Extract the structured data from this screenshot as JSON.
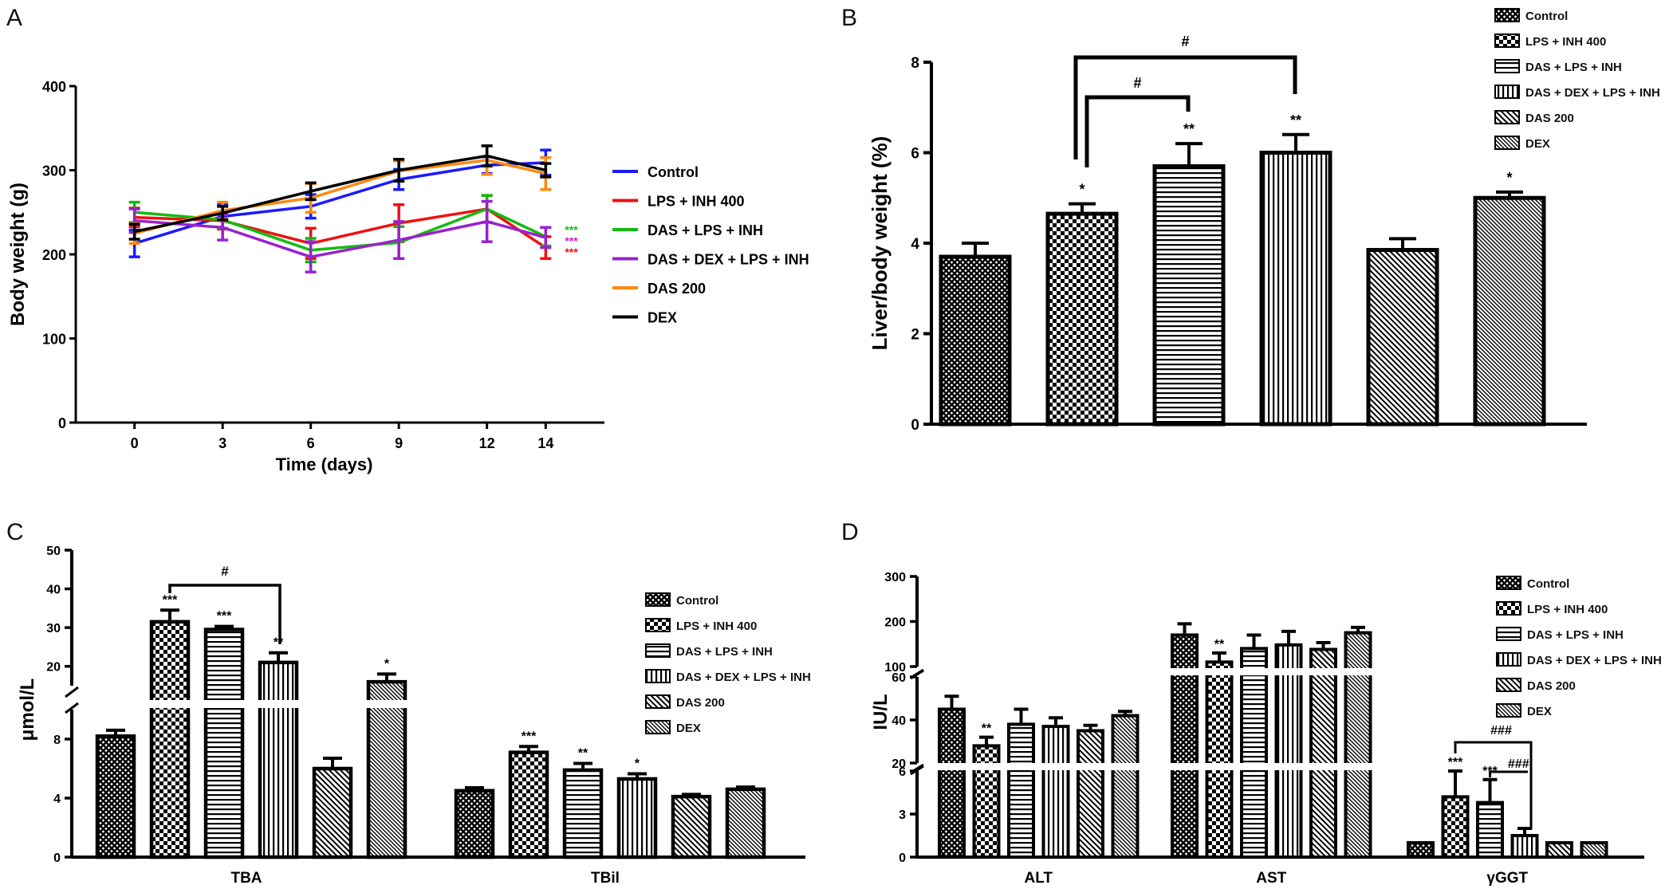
{
  "chart_data": [
    {
      "panel": "A",
      "type": "line",
      "title": "",
      "xlabel": "Time (days)",
      "ylabel": "Body weight (g)",
      "x": [
        0,
        3,
        6,
        9,
        12,
        14
      ],
      "xlim": [
        -2,
        16
      ],
      "ylim": [
        0,
        400
      ],
      "yticks": [
        0,
        100,
        200,
        300,
        400
      ],
      "legend_position": "right",
      "series": [
        {
          "name": "Control",
          "color": "#1a1aff",
          "values": [
            213,
            245,
            257,
            289,
            306,
            309
          ],
          "errors": [
            16,
            14,
            14,
            12,
            10,
            15
          ]
        },
        {
          "name": "LPS + INH 400",
          "color": "#ee1111",
          "values": [
            244,
            240,
            213,
            237,
            254,
            208
          ],
          "errors": [
            11,
            10,
            18,
            22,
            16,
            13
          ]
        },
        {
          "name": "DAS + LPS + INH",
          "color": "#11bb11",
          "values": [
            250,
            241,
            205,
            214,
            254,
            221
          ],
          "errors": [
            12,
            10,
            14,
            19,
            16,
            11
          ]
        },
        {
          "name": "DAS + DEX + LPS + INH",
          "color": "#9922cc",
          "values": [
            240,
            232,
            197,
            217,
            239,
            220
          ],
          "errors": [
            14,
            15,
            18,
            22,
            24,
            12
          ]
        },
        {
          "name": "DAS 200",
          "color": "#ff8811",
          "values": [
            225,
            252,
            267,
            299,
            312,
            296
          ],
          "errors": [
            12,
            10,
            17,
            12,
            17,
            19
          ]
        },
        {
          "name": "DEX",
          "color": "#000000",
          "values": [
            227,
            249,
            275,
            300,
            317,
            300
          ],
          "errors": [
            9,
            8,
            10,
            13,
            12,
            8
          ]
        }
      ],
      "annotations": [
        {
          "text": "***",
          "color": "#11bb11",
          "series": "DAS + LPS + INH",
          "x": 14
        },
        {
          "text": "***",
          "color": "#cc22cc",
          "series": "DAS + DEX + LPS + INH",
          "x": 14
        },
        {
          "text": "***",
          "color": "#ee1111",
          "series": "LPS + INH 400",
          "x": 14
        }
      ]
    },
    {
      "panel": "B",
      "type": "bar",
      "title": "",
      "xlabel": "",
      "ylabel": "Liver/body weight (%)",
      "categories": [
        "Control",
        "LPS + INH 400",
        "DAS + LPS + INH",
        "DAS + DEX + LPS + INH",
        "DAS 200",
        "DEX"
      ],
      "values": [
        3.7,
        4.65,
        5.7,
        6.0,
        3.85,
        5.0
      ],
      "errors": [
        0.3,
        0.22,
        0.5,
        0.4,
        0.25,
        0.13
      ],
      "ylim": [
        0,
        8
      ],
      "yticks": [
        0,
        2,
        4,
        6,
        8
      ],
      "legend_position": "top-right",
      "significance": [
        "",
        "*",
        "**",
        "**",
        "",
        "*"
      ],
      "brackets": [
        {
          "from": 1,
          "to": 2,
          "text": "#"
        },
        {
          "from": 1,
          "to": 3,
          "text": "#"
        }
      ]
    },
    {
      "panel": "C",
      "type": "bar",
      "title": "",
      "xlabel": "",
      "ylabel": "μmol/L",
      "categories": [
        "TBA",
        "TBil"
      ],
      "series": [
        {
          "name": "Control",
          "values": [
            8.2,
            4.5
          ],
          "errors": [
            0.4,
            0.2
          ]
        },
        {
          "name": "LPS + INH 400",
          "values": [
            31.5,
            7.1
          ],
          "errors": [
            3.0,
            0.4
          ]
        },
        {
          "name": "DAS + LPS + INH",
          "values": [
            29.5,
            5.9
          ],
          "errors": [
            0.8,
            0.45
          ]
        },
        {
          "name": "DAS + DEX + LPS + INH",
          "values": [
            21.0,
            5.3
          ],
          "errors": [
            2.5,
            0.35
          ]
        },
        {
          "name": "DAS 200",
          "values": [
            6.0,
            4.1
          ],
          "errors": [
            0.7,
            0.15
          ]
        },
        {
          "name": "DEX",
          "values": [
            16.0,
            4.6
          ],
          "errors": [
            2.0,
            0.15
          ]
        }
      ],
      "significance": [
        [
          "",
          ""
        ],
        [
          "***",
          "***"
        ],
        [
          "***",
          "**"
        ],
        [
          "**",
          "*"
        ],
        [
          "",
          ""
        ],
        [
          "*",
          ""
        ]
      ],
      "brackets": [
        {
          "category": 0,
          "from": 1,
          "to": 3,
          "text": "#"
        }
      ],
      "axis_break": {
        "lower_ylim": [
          0,
          10
        ],
        "lower_yticks": [
          0,
          4,
          8
        ],
        "upper_ylim": [
          15,
          50
        ],
        "upper_yticks": [
          20,
          30,
          40,
          50
        ]
      },
      "legend_position": "right"
    },
    {
      "panel": "D",
      "type": "bar",
      "title": "",
      "xlabel": "",
      "ylabel": "IU/L",
      "categories": [
        "ALT",
        "AST",
        "γGGT"
      ],
      "series": [
        {
          "name": "Control",
          "values": [
            45,
            170,
            1
          ],
          "errors": [
            6,
            25,
            0
          ]
        },
        {
          "name": "LPS + INH 400",
          "values": [
            28,
            110,
            4.2
          ],
          "errors": [
            4,
            20,
            1.8
          ]
        },
        {
          "name": "DAS + LPS + INH",
          "values": [
            38,
            140,
            3.8
          ],
          "errors": [
            7,
            30,
            1.6
          ]
        },
        {
          "name": "DAS + DEX + LPS + INH",
          "values": [
            37,
            148,
            1.5
          ],
          "errors": [
            4,
            30,
            0.5
          ]
        },
        {
          "name": "DAS 200",
          "values": [
            35,
            138,
            1
          ],
          "errors": [
            2.5,
            15,
            0
          ]
        },
        {
          "name": "DEX",
          "values": [
            42,
            175,
            1
          ],
          "errors": [
            2,
            12,
            0
          ]
        }
      ],
      "significance": [
        [
          "",
          "",
          ""
        ],
        [
          "**",
          "**",
          "***"
        ],
        [
          "",
          "",
          "***"
        ],
        [
          "",
          "",
          ""
        ],
        [
          "",
          "",
          ""
        ],
        [
          "",
          "",
          ""
        ]
      ],
      "brackets": [
        {
          "category": 2,
          "from": 1,
          "to": 3,
          "text": "###"
        },
        {
          "category": 2,
          "from": 2,
          "to": 3,
          "text": "###"
        }
      ],
      "axis_break": {
        "lower_ylim": [
          0,
          6
        ],
        "lower_yticks": [
          0,
          3,
          6
        ],
        "middle_ylim": [
          20,
          60
        ],
        "middle_yticks": [
          20,
          40,
          60
        ],
        "upper_ylim": [
          100,
          300
        ],
        "upper_yticks": [
          100,
          200,
          300
        ]
      },
      "legend_position": "right"
    }
  ],
  "panel_labels": [
    "A",
    "B",
    "C",
    "D"
  ]
}
